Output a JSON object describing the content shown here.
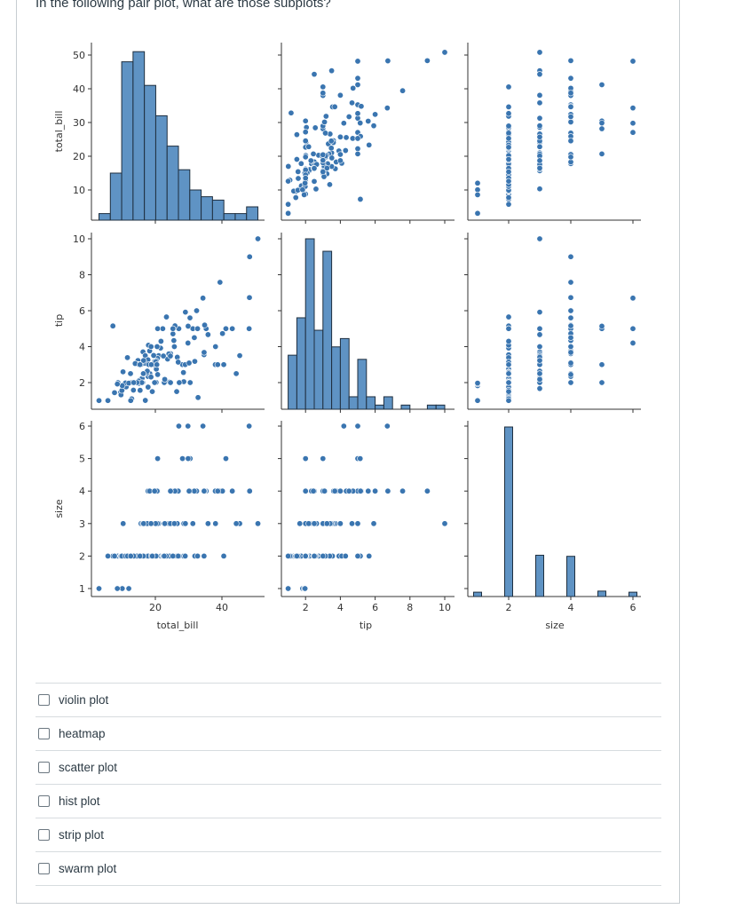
{
  "question": "In the following pair plot, what are those subplots?",
  "answers": [
    {
      "label": "violin plot",
      "checked": false
    },
    {
      "label": "heatmap",
      "checked": false
    },
    {
      "label": "scatter plot",
      "checked": false
    },
    {
      "label": "hist plot",
      "checked": false
    },
    {
      "label": "strip plot",
      "checked": false
    },
    {
      "label": "swarm plot",
      "checked": false
    }
  ],
  "colors": {
    "points": "#3a75b0",
    "bars": "#5f93c4",
    "bar_edge": "#1f2f3f"
  },
  "chart_data": {
    "type": "pairplot",
    "variables": [
      "total_bill",
      "tip",
      "size"
    ],
    "axis_labels": {
      "x": [
        "total_bill",
        "tip",
        "size"
      ],
      "y": [
        "total_bill",
        "tip",
        "size"
      ]
    },
    "ticks": {
      "total_bill_y": [
        10,
        20,
        30,
        40,
        50
      ],
      "total_bill_x": [
        20,
        40
      ],
      "tip_y": [
        2,
        4,
        6,
        8,
        10
      ],
      "tip_x": [
        2,
        4,
        6,
        8,
        10
      ],
      "size_y": [
        1,
        2,
        3,
        4,
        5,
        6
      ],
      "size_x": [
        2,
        4,
        6
      ]
    },
    "diagonal": "histogram",
    "off_diagonal": "scatter",
    "histograms": {
      "total_bill": {
        "bin_start": 3.07,
        "bin_width": 3.41,
        "counts": [
          3,
          15,
          48,
          51,
          41,
          32,
          23,
          16,
          10,
          8,
          7,
          3,
          3,
          5
        ]
      },
      "tip": {
        "bin_start": 1.0,
        "bin_width": 0.5,
        "counts": [
          13,
          22,
          41,
          19,
          38,
          15,
          17,
          3,
          12,
          3,
          1,
          3,
          0,
          1,
          0,
          0,
          1,
          1
        ]
      },
      "size": {
        "values": [
          1,
          2,
          3,
          4,
          5,
          6
        ],
        "counts": [
          4,
          156,
          38,
          37,
          5,
          4
        ]
      }
    },
    "points_columns": [
      "total_bill",
      "tip",
      "size"
    ],
    "points": [
      [
        16.99,
        1.01,
        2
      ],
      [
        10.34,
        1.66,
        3
      ],
      [
        21.01,
        3.5,
        3
      ],
      [
        23.68,
        3.31,
        2
      ],
      [
        24.59,
        3.61,
        4
      ],
      [
        25.29,
        4.71,
        4
      ],
      [
        8.77,
        2.0,
        2
      ],
      [
        26.88,
        3.12,
        4
      ],
      [
        15.04,
        1.96,
        2
      ],
      [
        14.78,
        3.23,
        2
      ],
      [
        10.27,
        1.71,
        2
      ],
      [
        35.26,
        5.0,
        4
      ],
      [
        15.42,
        1.57,
        2
      ],
      [
        18.43,
        3.0,
        4
      ],
      [
        14.83,
        3.02,
        2
      ],
      [
        21.58,
        3.92,
        2
      ],
      [
        10.33,
        1.67,
        3
      ],
      [
        16.29,
        3.71,
        3
      ],
      [
        16.97,
        3.5,
        3
      ],
      [
        20.65,
        3.35,
        3
      ],
      [
        17.92,
        4.08,
        2
      ],
      [
        20.29,
        2.75,
        2
      ],
      [
        15.77,
        2.23,
        2
      ],
      [
        39.42,
        7.58,
        4
      ],
      [
        19.82,
        3.18,
        2
      ],
      [
        17.81,
        2.34,
        4
      ],
      [
        13.37,
        2.0,
        2
      ],
      [
        12.69,
        2.0,
        2
      ],
      [
        21.7,
        4.3,
        2
      ],
      [
        19.65,
        3.0,
        2
      ],
      [
        9.55,
        1.45,
        2
      ],
      [
        18.35,
        2.5,
        4
      ],
      [
        15.06,
        3.0,
        2
      ],
      [
        20.69,
        2.45,
        4
      ],
      [
        17.78,
        3.27,
        2
      ],
      [
        24.06,
        3.6,
        3
      ],
      [
        16.31,
        2.0,
        3
      ],
      [
        16.93,
        3.07,
        3
      ],
      [
        18.69,
        2.31,
        3
      ],
      [
        31.27,
        5.0,
        3
      ],
      [
        16.04,
        2.24,
        3
      ],
      [
        17.46,
        2.54,
        2
      ],
      [
        13.94,
        3.06,
        2
      ],
      [
        9.68,
        1.32,
        2
      ],
      [
        30.4,
        5.6,
        4
      ],
      [
        18.29,
        3.0,
        2
      ],
      [
        22.23,
        5.0,
        2
      ],
      [
        32.4,
        6.0,
        4
      ],
      [
        28.55,
        2.05,
        3
      ],
      [
        18.04,
        3.0,
        2
      ],
      [
        12.54,
        2.5,
        2
      ],
      [
        10.29,
        2.6,
        2
      ],
      [
        34.81,
        5.2,
        4
      ],
      [
        9.94,
        1.56,
        2
      ],
      [
        25.56,
        4.34,
        4
      ],
      [
        19.49,
        3.51,
        2
      ],
      [
        38.01,
        3.0,
        4
      ],
      [
        26.41,
        1.5,
        2
      ],
      [
        11.24,
        1.76,
        2
      ],
      [
        48.27,
        6.73,
        4
      ],
      [
        20.29,
        3.21,
        2
      ],
      [
        13.81,
        2.0,
        2
      ],
      [
        11.02,
        1.98,
        2
      ],
      [
        18.29,
        3.76,
        4
      ],
      [
        17.59,
        2.64,
        3
      ],
      [
        20.08,
        3.15,
        3
      ],
      [
        16.45,
        2.47,
        2
      ],
      [
        3.07,
        1.0,
        1
      ],
      [
        20.23,
        2.01,
        2
      ],
      [
        15.01,
        2.09,
        2
      ],
      [
        50.81,
        10.0,
        3
      ],
      [
        48.33,
        9.0,
        4
      ],
      [
        7.25,
        5.15,
        2
      ],
      [
        44.3,
        2.5,
        3
      ],
      [
        40.55,
        3.0,
        2
      ],
      [
        34.3,
        6.7,
        6
      ],
      [
        41.19,
        5.0,
        5
      ],
      [
        48.17,
        5.0,
        6
      ],
      [
        27.05,
        5.0,
        6
      ],
      [
        29.8,
        4.2,
        6
      ],
      [
        45.35,
        3.5,
        3
      ],
      [
        43.11,
        5.0,
        4
      ],
      [
        32.83,
        1.17,
        2
      ],
      [
        5.75,
        1.0,
        2
      ],
      [
        10.07,
        1.83,
        1
      ],
      [
        8.58,
        1.92,
        1
      ],
      [
        7.74,
        1.44,
        2
      ],
      [
        28.44,
        2.56,
        2
      ],
      [
        20.45,
        3.0,
        4
      ],
      [
        22.42,
        3.48,
        2
      ],
      [
        30.46,
        2.0,
        5
      ],
      [
        20.69,
        5.0,
        5
      ],
      [
        28.15,
        3.0,
        5
      ],
      [
        24.27,
        2.03,
        2
      ],
      [
        31.85,
        3.18,
        2
      ],
      [
        35.83,
        4.67,
        3
      ],
      [
        38.07,
        4.0,
        3
      ],
      [
        23.33,
        5.65,
        2
      ],
      [
        40.17,
        4.73,
        4
      ],
      [
        24.52,
        3.48,
        3
      ],
      [
        29.03,
        5.92,
        3
      ],
      [
        27.18,
        2.0,
        2
      ],
      [
        22.67,
        2.0,
        2
      ],
      [
        17.82,
        1.75,
        2
      ],
      [
        18.78,
        3.0,
        2
      ],
      [
        25.89,
        5.16,
        4
      ],
      [
        32.68,
        5.0,
        2
      ],
      [
        34.63,
        3.55,
        2
      ],
      [
        28.97,
        3.0,
        2
      ],
      [
        26.59,
        3.41,
        3
      ],
      [
        38.73,
        3.0,
        4
      ],
      [
        15.69,
        3.0,
        3
      ],
      [
        11.61,
        3.39,
        2
      ],
      [
        13.42,
        1.58,
        2
      ],
      [
        16.21,
        2.0,
        3
      ],
      [
        29.85,
        5.14,
        5
      ],
      [
        19.08,
        1.5,
        2
      ],
      [
        22.82,
        2.18,
        3
      ],
      [
        25.71,
        4.0,
        3
      ],
      [
        31.71,
        4.5,
        4
      ],
      [
        34.65,
        3.68,
        4
      ],
      [
        26.86,
        3.14,
        2
      ],
      [
        25.28,
        5.0,
        2
      ],
      [
        30.14,
        3.09,
        4
      ],
      [
        15.95,
        2.0,
        2
      ],
      [
        14.48,
        2.0,
        2
      ],
      [
        12.74,
        2.01,
        2
      ],
      [
        13.0,
        2.0,
        2
      ],
      [
        16.4,
        2.5,
        2
      ],
      [
        20.53,
        4.0,
        4
      ],
      [
        16.47,
        3.23,
        3
      ],
      [
        12.9,
        1.1,
        2
      ],
      [
        15.38,
        3.0,
        2
      ],
      [
        44.3,
        2.5,
        3
      ],
      [
        12.02,
        1.97,
        1
      ],
      [
        13.51,
        2.0,
        2
      ],
      [
        18.71,
        4.0,
        3
      ],
      [
        12.6,
        1.0,
        2
      ],
      [
        24.55,
        2.0,
        4
      ],
      [
        19.77,
        2.0,
        4
      ]
    ]
  }
}
